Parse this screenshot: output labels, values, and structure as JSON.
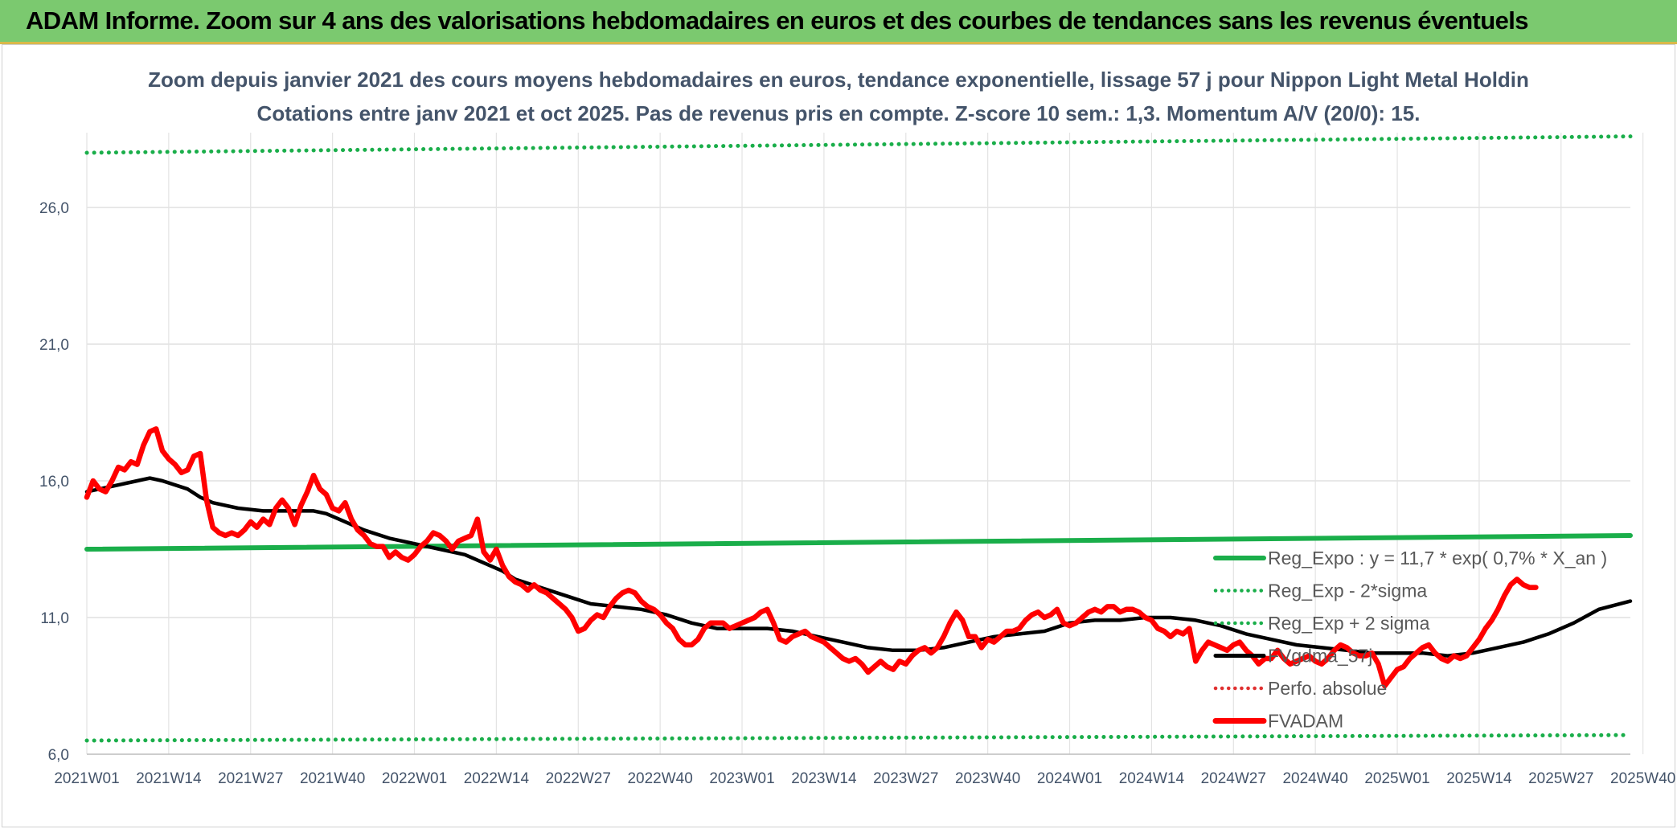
{
  "banner": {
    "title": "ADAM Informe. Zoom sur 4 ans des valorisations hebdomadaires en euros et des courbes de tendances sans les revenus éventuels"
  },
  "colors": {
    "banner_bg": "#7bc96f",
    "price": "#ff0000",
    "smooth": "#000000",
    "regression": "#1aae4a",
    "band": "#1aae4a",
    "perf": "#e03030",
    "text": "#44546a"
  },
  "chart_data": {
    "type": "line",
    "title": "Zoom depuis janvier 2021 des cours moyens hebdomadaires en euros, tendance exponentielle, lissage 57 j pour Nippon Light Metal Holdin",
    "subtitle": "Cotations entre janv 2021 et oct 2025. Pas de revenus pris en compte. Z-score 10 sem.: 1,3. Momentum A/V (20/0): 15.",
    "ylim": [
      6.0,
      28.5
    ],
    "yticks": [
      "6,0",
      "11,0",
      "16,0",
      "21,0",
      "26,0"
    ],
    "ytick_values": [
      6,
      11,
      16,
      21,
      26
    ],
    "xticks": [
      "2021W01",
      "2021W14",
      "2021W27",
      "2021W40",
      "2022W01",
      "2022W14",
      "2022W27",
      "2022W40",
      "2023W01",
      "2023W14",
      "2023W27",
      "2023W40",
      "2024W01",
      "2024W14",
      "2024W27",
      "2024W40",
      "2025W01",
      "2025W14",
      "2025W27",
      "2025W40"
    ],
    "grid": true,
    "legend_position": "bottom-right",
    "series": [
      {
        "name": "Reg_Expo : y = 11,7 * exp( 0,7% *  X_an )",
        "style": "solid-thick",
        "color": "#1aae4a",
        "points": [
          [
            0,
            13.5
          ],
          [
            245,
            14.0
          ]
        ]
      },
      {
        "name": "Reg_Exp - 2*sigma",
        "style": "dotted",
        "color": "#1aae4a",
        "points": [
          [
            0,
            6.5
          ],
          [
            245,
            6.7
          ]
        ]
      },
      {
        "name": "Reg_Exp + 2 sigma",
        "style": "dotted",
        "color": "#1aae4a",
        "points": [
          [
            0,
            28.0
          ],
          [
            245,
            28.6
          ]
        ]
      },
      {
        "name": "FVgdma_57j",
        "style": "solid",
        "color": "#000000",
        "points": [
          [
            0,
            15.6
          ],
          [
            4,
            15.8
          ],
          [
            8,
            16.0
          ],
          [
            10,
            16.1
          ],
          [
            12,
            16.0
          ],
          [
            16,
            15.7
          ],
          [
            18,
            15.4
          ],
          [
            20,
            15.2
          ],
          [
            24,
            15.0
          ],
          [
            28,
            14.9
          ],
          [
            32,
            14.9
          ],
          [
            36,
            14.9
          ],
          [
            38,
            14.8
          ],
          [
            40,
            14.6
          ],
          [
            44,
            14.2
          ],
          [
            48,
            13.9
          ],
          [
            52,
            13.7
          ],
          [
            56,
            13.5
          ],
          [
            60,
            13.3
          ],
          [
            64,
            12.9
          ],
          [
            66,
            12.7
          ],
          [
            68,
            12.4
          ],
          [
            72,
            12.1
          ],
          [
            76,
            11.8
          ],
          [
            80,
            11.5
          ],
          [
            84,
            11.4
          ],
          [
            88,
            11.3
          ],
          [
            92,
            11.1
          ],
          [
            96,
            10.8
          ],
          [
            100,
            10.6
          ],
          [
            104,
            10.6
          ],
          [
            108,
            10.6
          ],
          [
            112,
            10.5
          ],
          [
            116,
            10.3
          ],
          [
            120,
            10.1
          ],
          [
            124,
            9.9
          ],
          [
            128,
            9.8
          ],
          [
            132,
            9.8
          ],
          [
            136,
            9.9
          ],
          [
            140,
            10.1
          ],
          [
            144,
            10.3
          ],
          [
            148,
            10.4
          ],
          [
            152,
            10.5
          ],
          [
            156,
            10.8
          ],
          [
            160,
            10.9
          ],
          [
            164,
            10.9
          ],
          [
            168,
            11.0
          ],
          [
            172,
            11.0
          ],
          [
            176,
            10.9
          ],
          [
            180,
            10.7
          ],
          [
            184,
            10.4
          ],
          [
            188,
            10.2
          ],
          [
            192,
            10.0
          ],
          [
            196,
            9.9
          ],
          [
            200,
            9.8
          ],
          [
            204,
            9.7
          ],
          [
            208,
            9.7
          ],
          [
            212,
            9.7
          ],
          [
            216,
            9.6
          ],
          [
            220,
            9.7
          ],
          [
            224,
            9.9
          ],
          [
            228,
            10.1
          ],
          [
            232,
            10.4
          ],
          [
            236,
            10.8
          ],
          [
            240,
            11.3
          ],
          [
            245,
            11.6
          ]
        ]
      },
      {
        "name": "Perfo. absolue",
        "style": "dotted",
        "color": "#e03030",
        "points": []
      },
      {
        "name": "FVADAM",
        "style": "solid-thick",
        "color": "#ff0000",
        "points": [
          [
            0,
            15.4
          ],
          [
            1,
            16.0
          ],
          [
            2,
            15.7
          ],
          [
            3,
            15.6
          ],
          [
            4,
            16.0
          ],
          [
            5,
            16.5
          ],
          [
            6,
            16.4
          ],
          [
            7,
            16.7
          ],
          [
            8,
            16.6
          ],
          [
            9,
            17.3
          ],
          [
            10,
            17.8
          ],
          [
            11,
            17.9
          ],
          [
            12,
            17.1
          ],
          [
            13,
            16.8
          ],
          [
            14,
            16.6
          ],
          [
            15,
            16.3
          ],
          [
            16,
            16.4
          ],
          [
            17,
            16.9
          ],
          [
            18,
            17.0
          ],
          [
            19,
            15.3
          ],
          [
            20,
            14.3
          ],
          [
            21,
            14.1
          ],
          [
            22,
            14.0
          ],
          [
            23,
            14.1
          ],
          [
            24,
            14.0
          ],
          [
            25,
            14.2
          ],
          [
            26,
            14.5
          ],
          [
            27,
            14.3
          ],
          [
            28,
            14.6
          ],
          [
            29,
            14.4
          ],
          [
            30,
            15.0
          ],
          [
            31,
            15.3
          ],
          [
            32,
            15.0
          ],
          [
            33,
            14.4
          ],
          [
            34,
            15.1
          ],
          [
            35,
            15.6
          ],
          [
            36,
            16.2
          ],
          [
            37,
            15.7
          ],
          [
            38,
            15.5
          ],
          [
            39,
            15.0
          ],
          [
            40,
            14.9
          ],
          [
            41,
            15.2
          ],
          [
            42,
            14.6
          ],
          [
            43,
            14.2
          ],
          [
            44,
            14.0
          ],
          [
            45,
            13.7
          ],
          [
            46,
            13.6
          ],
          [
            47,
            13.6
          ],
          [
            48,
            13.2
          ],
          [
            49,
            13.4
          ],
          [
            50,
            13.2
          ],
          [
            51,
            13.1
          ],
          [
            52,
            13.3
          ],
          [
            53,
            13.6
          ],
          [
            54,
            13.8
          ],
          [
            55,
            14.1
          ],
          [
            56,
            14.0
          ],
          [
            57,
            13.8
          ],
          [
            58,
            13.5
          ],
          [
            59,
            13.8
          ],
          [
            60,
            13.9
          ],
          [
            61,
            14.0
          ],
          [
            62,
            14.6
          ],
          [
            63,
            13.4
          ],
          [
            64,
            13.1
          ],
          [
            65,
            13.5
          ],
          [
            66,
            12.9
          ],
          [
            67,
            12.5
          ],
          [
            68,
            12.3
          ],
          [
            69,
            12.2
          ],
          [
            70,
            12.0
          ],
          [
            71,
            12.2
          ],
          [
            72,
            12.0
          ],
          [
            73,
            11.9
          ],
          [
            74,
            11.7
          ],
          [
            75,
            11.5
          ],
          [
            76,
            11.3
          ],
          [
            77,
            11.0
          ],
          [
            78,
            10.5
          ],
          [
            79,
            10.6
          ],
          [
            80,
            10.9
          ],
          [
            81,
            11.1
          ],
          [
            82,
            11.0
          ],
          [
            83,
            11.4
          ],
          [
            84,
            11.7
          ],
          [
            85,
            11.9
          ],
          [
            86,
            12.0
          ],
          [
            87,
            11.9
          ],
          [
            88,
            11.6
          ],
          [
            89,
            11.4
          ],
          [
            90,
            11.3
          ],
          [
            91,
            11.1
          ],
          [
            92,
            10.8
          ],
          [
            93,
            10.6
          ],
          [
            94,
            10.2
          ],
          [
            95,
            10.0
          ],
          [
            96,
            10.0
          ],
          [
            97,
            10.2
          ],
          [
            98,
            10.6
          ],
          [
            99,
            10.8
          ],
          [
            100,
            10.8
          ],
          [
            101,
            10.8
          ],
          [
            102,
            10.6
          ],
          [
            103,
            10.7
          ],
          [
            104,
            10.8
          ],
          [
            105,
            10.9
          ],
          [
            106,
            11.0
          ],
          [
            107,
            11.2
          ],
          [
            108,
            11.3
          ],
          [
            109,
            10.8
          ],
          [
            110,
            10.2
          ],
          [
            111,
            10.1
          ],
          [
            112,
            10.3
          ],
          [
            113,
            10.4
          ],
          [
            114,
            10.5
          ],
          [
            115,
            10.3
          ],
          [
            116,
            10.2
          ],
          [
            117,
            10.1
          ],
          [
            118,
            9.9
          ],
          [
            119,
            9.7
          ],
          [
            120,
            9.5
          ],
          [
            121,
            9.4
          ],
          [
            122,
            9.5
          ],
          [
            123,
            9.3
          ],
          [
            124,
            9.0
          ],
          [
            125,
            9.2
          ],
          [
            126,
            9.4
          ],
          [
            127,
            9.2
          ],
          [
            128,
            9.1
          ],
          [
            129,
            9.4
          ],
          [
            130,
            9.3
          ],
          [
            131,
            9.6
          ],
          [
            132,
            9.8
          ],
          [
            133,
            9.9
          ],
          [
            134,
            9.7
          ],
          [
            135,
            9.9
          ],
          [
            136,
            10.3
          ],
          [
            137,
            10.8
          ],
          [
            138,
            11.2
          ],
          [
            139,
            10.9
          ],
          [
            140,
            10.3
          ],
          [
            141,
            10.3
          ],
          [
            142,
            9.9
          ],
          [
            143,
            10.2
          ],
          [
            144,
            10.1
          ],
          [
            145,
            10.3
          ],
          [
            146,
            10.5
          ],
          [
            147,
            10.5
          ],
          [
            148,
            10.6
          ],
          [
            149,
            10.9
          ],
          [
            150,
            11.1
          ],
          [
            151,
            11.2
          ],
          [
            152,
            11.0
          ],
          [
            153,
            11.1
          ],
          [
            154,
            11.3
          ],
          [
            155,
            10.8
          ],
          [
            156,
            10.7
          ],
          [
            157,
            10.8
          ],
          [
            158,
            11.0
          ],
          [
            159,
            11.2
          ],
          [
            160,
            11.3
          ],
          [
            161,
            11.2
          ],
          [
            162,
            11.4
          ],
          [
            163,
            11.4
          ],
          [
            164,
            11.2
          ],
          [
            165,
            11.3
          ],
          [
            166,
            11.3
          ],
          [
            167,
            11.2
          ],
          [
            168,
            11.0
          ],
          [
            169,
            10.9
          ],
          [
            170,
            10.6
          ],
          [
            171,
            10.5
          ],
          [
            172,
            10.3
          ],
          [
            173,
            10.5
          ],
          [
            174,
            10.4
          ],
          [
            175,
            10.6
          ],
          [
            176,
            9.4
          ],
          [
            177,
            9.8
          ],
          [
            178,
            10.1
          ],
          [
            179,
            10.0
          ],
          [
            180,
            9.9
          ],
          [
            181,
            9.8
          ],
          [
            182,
            10.0
          ],
          [
            183,
            10.1
          ],
          [
            184,
            9.8
          ],
          [
            185,
            9.6
          ],
          [
            186,
            9.3
          ],
          [
            187,
            9.5
          ],
          [
            188,
            9.5
          ],
          [
            189,
            9.8
          ],
          [
            190,
            9.5
          ],
          [
            191,
            9.3
          ],
          [
            192,
            9.4
          ],
          [
            193,
            9.5
          ],
          [
            194,
            9.6
          ],
          [
            195,
            9.4
          ],
          [
            196,
            9.3
          ],
          [
            197,
            9.5
          ],
          [
            198,
            9.8
          ],
          [
            199,
            10.0
          ],
          [
            200,
            9.9
          ],
          [
            201,
            9.7
          ],
          [
            202,
            9.6
          ],
          [
            203,
            9.6
          ],
          [
            204,
            9.7
          ],
          [
            205,
            9.3
          ],
          [
            206,
            8.5
          ],
          [
            207,
            8.8
          ],
          [
            208,
            9.1
          ],
          [
            209,
            9.2
          ],
          [
            210,
            9.5
          ],
          [
            211,
            9.7
          ],
          [
            212,
            9.9
          ],
          [
            213,
            10.0
          ],
          [
            214,
            9.7
          ],
          [
            215,
            9.5
          ],
          [
            216,
            9.4
          ],
          [
            217,
            9.6
          ],
          [
            218,
            9.5
          ],
          [
            219,
            9.6
          ],
          [
            220,
            9.9
          ],
          [
            221,
            10.2
          ],
          [
            222,
            10.6
          ],
          [
            223,
            10.9
          ],
          [
            224,
            11.3
          ],
          [
            225,
            11.8
          ],
          [
            226,
            12.2
          ],
          [
            227,
            12.4
          ],
          [
            228,
            12.2
          ],
          [
            229,
            12.1
          ],
          [
            230,
            12.1
          ]
        ]
      }
    ]
  }
}
